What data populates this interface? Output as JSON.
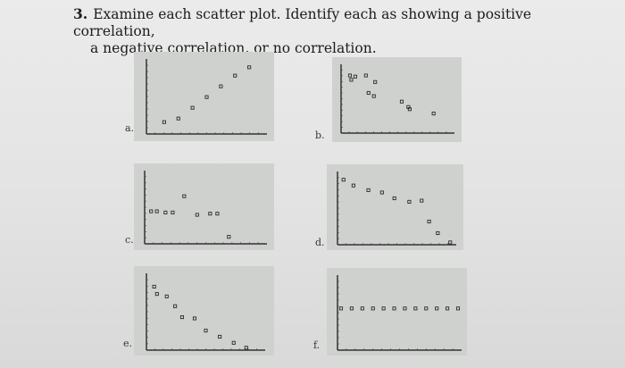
{
  "question": {
    "number": "3.",
    "line1": "Examine each scatter plot. Identify each as showing a positive correlation,",
    "line2": "a negative correlation, or no correlation."
  },
  "chart_data": [
    {
      "type": "scatter",
      "label": "a.",
      "x": [
        1,
        2,
        3,
        4,
        5,
        6,
        7
      ],
      "y": [
        1,
        1.3,
        2.2,
        3.1,
        4,
        4.9,
        5.6
      ],
      "xlim": [
        0,
        8
      ],
      "ylim": [
        0,
        6
      ]
    },
    {
      "type": "scatter",
      "label": "b.",
      "x": [
        0.4,
        0.8,
        1.6,
        0.5,
        2.3,
        1.8,
        2.2,
        4.3,
        4.8,
        4.9,
        6.7
      ],
      "y": [
        5.3,
        5.2,
        5.3,
        4.9,
        4.7,
        3.7,
        3.4,
        2.9,
        2.4,
        2.2,
        1.8
      ],
      "xlim": [
        0,
        8
      ],
      "ylim": [
        0,
        6
      ]
    },
    {
      "type": "scatter",
      "label": "c.",
      "x": [
        0.2,
        0.6,
        1.2,
        1.7,
        2.5,
        3.4,
        4.3,
        4.8,
        5.6
      ],
      "y": [
        2.8,
        2.8,
        2.7,
        2.7,
        4.1,
        2.5,
        2.6,
        2.6,
        0.6
      ],
      "xlim": [
        0,
        8
      ],
      "ylim": [
        0,
        6
      ]
    },
    {
      "type": "scatter",
      "label": "d.",
      "x": [
        0.2,
        1.0,
        2.2,
        3.3,
        4.3,
        5.5,
        6.5,
        7.1,
        7.8,
        8.8
      ],
      "y": [
        5.6,
        5.1,
        4.7,
        4.5,
        4.0,
        3.7,
        3.8,
        2.0,
        1.0,
        0.2
      ],
      "xlim": [
        0,
        9
      ],
      "ylim": [
        0,
        6
      ]
    },
    {
      "type": "scatter",
      "label": "e.",
      "x": [
        0.3,
        0.5,
        1.2,
        1.8,
        2.3,
        3.2,
        4.0,
        5.0,
        6.0,
        6.9
      ],
      "y": [
        5.2,
        4.6,
        4.4,
        3.6,
        2.7,
        2.6,
        1.6,
        1.1,
        0.6,
        0.2
      ],
      "xlim": [
        0,
        8
      ],
      "ylim": [
        0,
        6
      ]
    },
    {
      "type": "scatter",
      "label": "f.",
      "x": [
        0,
        1,
        2,
        3,
        4,
        5,
        6,
        7,
        8,
        9,
        10,
        11
      ],
      "y": [
        3.5,
        3.5,
        3.5,
        3.5,
        3.5,
        3.5,
        3.5,
        3.5,
        3.5,
        3.5,
        3.5,
        3.5
      ],
      "xlim": [
        0,
        11
      ],
      "ylim": [
        0,
        6
      ]
    }
  ]
}
